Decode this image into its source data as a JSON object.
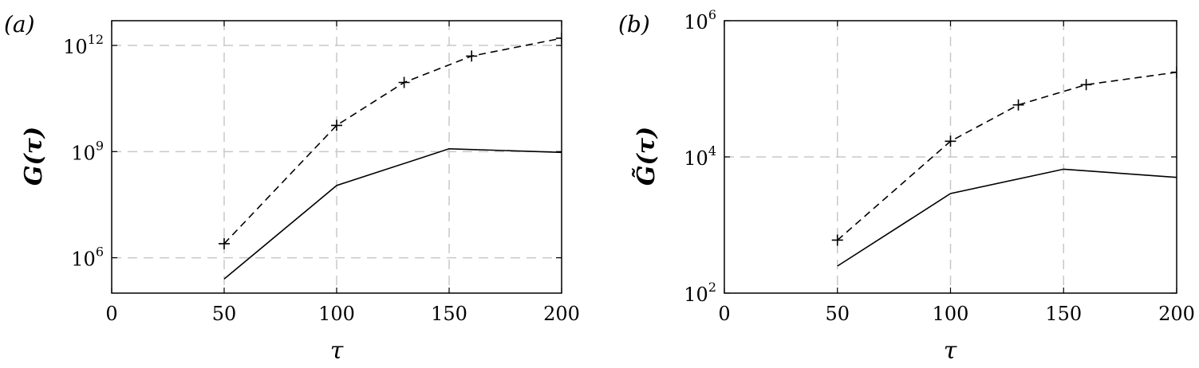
{
  "chart_data": [
    {
      "type": "line",
      "panel_label": "(a)",
      "xlabel": "τ",
      "ylabel": "G(τ)",
      "y_scale": "log",
      "xlim": [
        0,
        200
      ],
      "ylim": [
        100000.0,
        5000000000000.0
      ],
      "grid": true,
      "x_ticks": [
        0,
        50,
        100,
        150,
        200
      ],
      "y_ticks": [
        {
          "value": 1000000.0,
          "base": "10",
          "exp": "6"
        },
        {
          "value": 1000000000.0,
          "base": "10",
          "exp": "9"
        },
        {
          "value": 1000000000000.0,
          "base": "10",
          "exp": "12"
        }
      ],
      "series": [
        {
          "style": "solid",
          "markers": false,
          "points": [
            {
              "x": 50,
              "y": 250000.0
            },
            {
              "x": 100,
              "y": 110000000.0
            },
            {
              "x": 150,
              "y": 1200000000.0
            },
            {
              "x": 200,
              "y": 950000000.0
            }
          ]
        },
        {
          "style": "dashed",
          "markers": true,
          "points": [
            {
              "x": 50,
              "y": 2500000.0
            },
            {
              "x": 100,
              "y": 5500000000.0
            },
            {
              "x": 130,
              "y": 90000000000.0
            },
            {
              "x": 160,
              "y": 500000000000.0
            },
            {
              "x": 200,
              "y": 1600000000000.0
            }
          ]
        }
      ]
    },
    {
      "type": "line",
      "panel_label": "(b)",
      "xlabel": "τ",
      "ylabel": "G̃(τ)",
      "y_scale": "log",
      "xlim": [
        0,
        200
      ],
      "ylim": [
        100,
        1000000.0
      ],
      "grid": true,
      "x_ticks": [
        0,
        50,
        100,
        150,
        200
      ],
      "y_ticks": [
        {
          "value": 100,
          "base": "10",
          "exp": "2"
        },
        {
          "value": 10000,
          "base": "10",
          "exp": "4"
        },
        {
          "value": 1000000,
          "base": "10",
          "exp": "6"
        }
      ],
      "series": [
        {
          "style": "solid",
          "markers": false,
          "points": [
            {
              "x": 50,
              "y": 250
            },
            {
              "x": 100,
              "y": 2900
            },
            {
              "x": 150,
              "y": 6600
            },
            {
              "x": 200,
              "y": 5000
            }
          ]
        },
        {
          "style": "dashed",
          "markers": true,
          "points": [
            {
              "x": 50,
              "y": 600
            },
            {
              "x": 100,
              "y": 17000
            },
            {
              "x": 130,
              "y": 58000
            },
            {
              "x": 160,
              "y": 115000
            },
            {
              "x": 200,
              "y": 175000
            }
          ]
        }
      ]
    }
  ]
}
